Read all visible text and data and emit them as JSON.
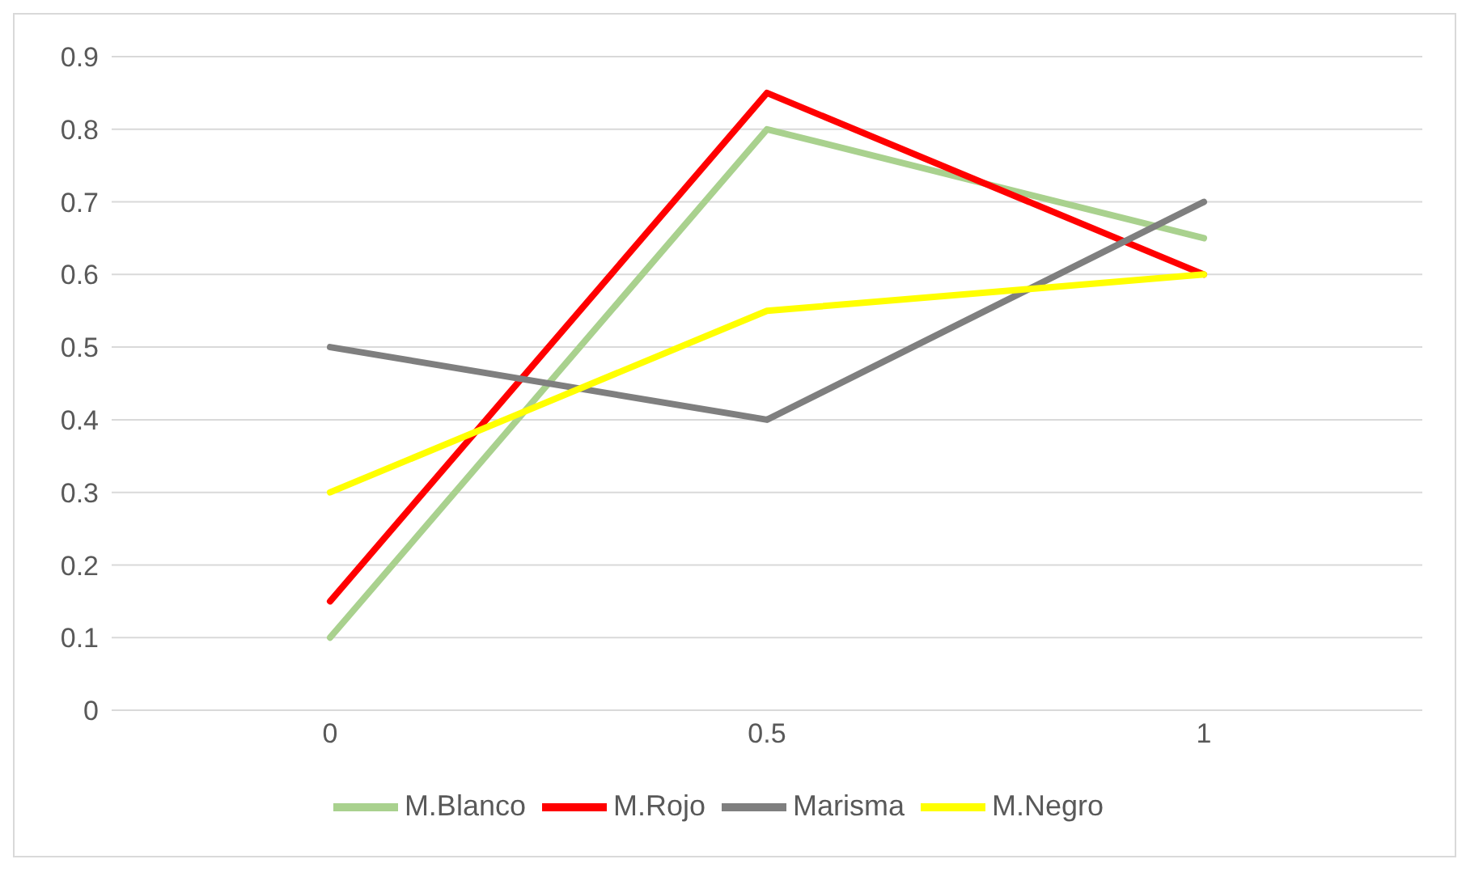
{
  "chart_data": {
    "type": "line",
    "categories": [
      "0",
      "0.5",
      "1"
    ],
    "series": [
      {
        "name": "M.Blanco",
        "color": "#a9d18e",
        "values": [
          0.1,
          0.8,
          0.65
        ]
      },
      {
        "name": "M.Rojo",
        "color": "#ff0000",
        "values": [
          0.15,
          0.85,
          0.6
        ]
      },
      {
        "name": "Marisma",
        "color": "#7f7f7f",
        "values": [
          0.5,
          0.4,
          0.7
        ]
      },
      {
        "name": "M.Negro",
        "color": "#ffff00",
        "values": [
          0.3,
          0.55,
          0.6
        ]
      }
    ],
    "ylim": [
      0,
      0.9
    ],
    "yticks": [
      0,
      0.1,
      0.2,
      0.3,
      0.4,
      0.5,
      0.6,
      0.7,
      0.8,
      0.9
    ],
    "grid": "y",
    "legend": "bottom",
    "marker": "none",
    "line_style": "solid"
  }
}
